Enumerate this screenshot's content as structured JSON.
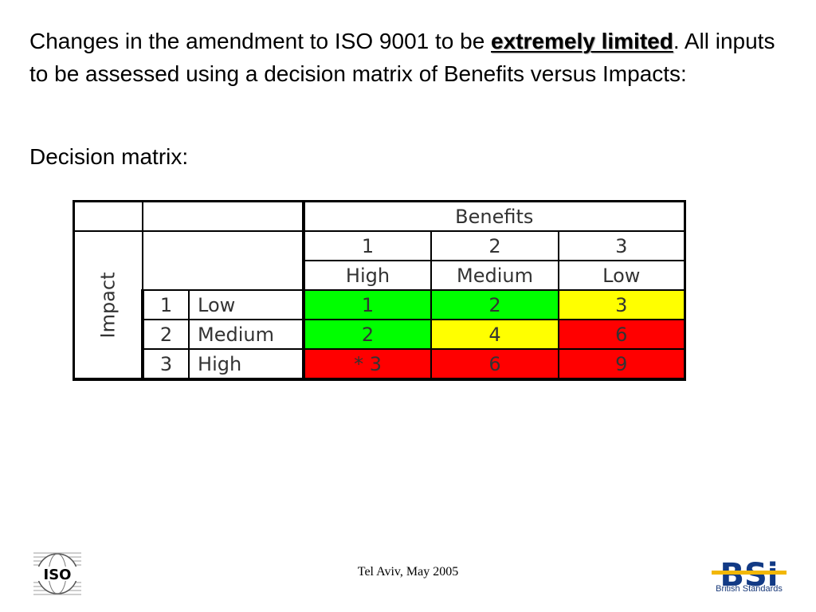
{
  "intro": {
    "before": "Changes in the amendment to ISO 9001 to be ",
    "emphasis": "extremely limited",
    "after": ". All inputs to be assessed using a decision matrix of Benefits versus Impacts:"
  },
  "subheading": "Decision matrix:",
  "matrix": {
    "benefits_header": "Benefits",
    "impact_header": "Impact",
    "benefit_numbers": [
      "1",
      "2",
      "3"
    ],
    "benefit_labels": [
      "High",
      "Medium",
      "Low"
    ],
    "rows": [
      {
        "num": "1",
        "label": "Low",
        "cells": [
          "1",
          "2",
          "3"
        ],
        "colors": [
          "#00ff00",
          "#00ff00",
          "#ffff00"
        ]
      },
      {
        "num": "2",
        "label": "Medium",
        "cells": [
          "2",
          "4",
          "6"
        ],
        "colors": [
          "#00ff00",
          "#ffff00",
          "#ff0000"
        ]
      },
      {
        "num": "3",
        "label": "High",
        "cells": [
          "* 3",
          "6",
          "9"
        ],
        "colors": [
          "#ff0000",
          "#ff0000",
          "#ff0000"
        ]
      }
    ]
  },
  "footer": {
    "text": "Tel Aviv, May 2005",
    "left_logo": "ISO",
    "right_logo": "BSi",
    "right_logo_caption": "British Standards"
  }
}
